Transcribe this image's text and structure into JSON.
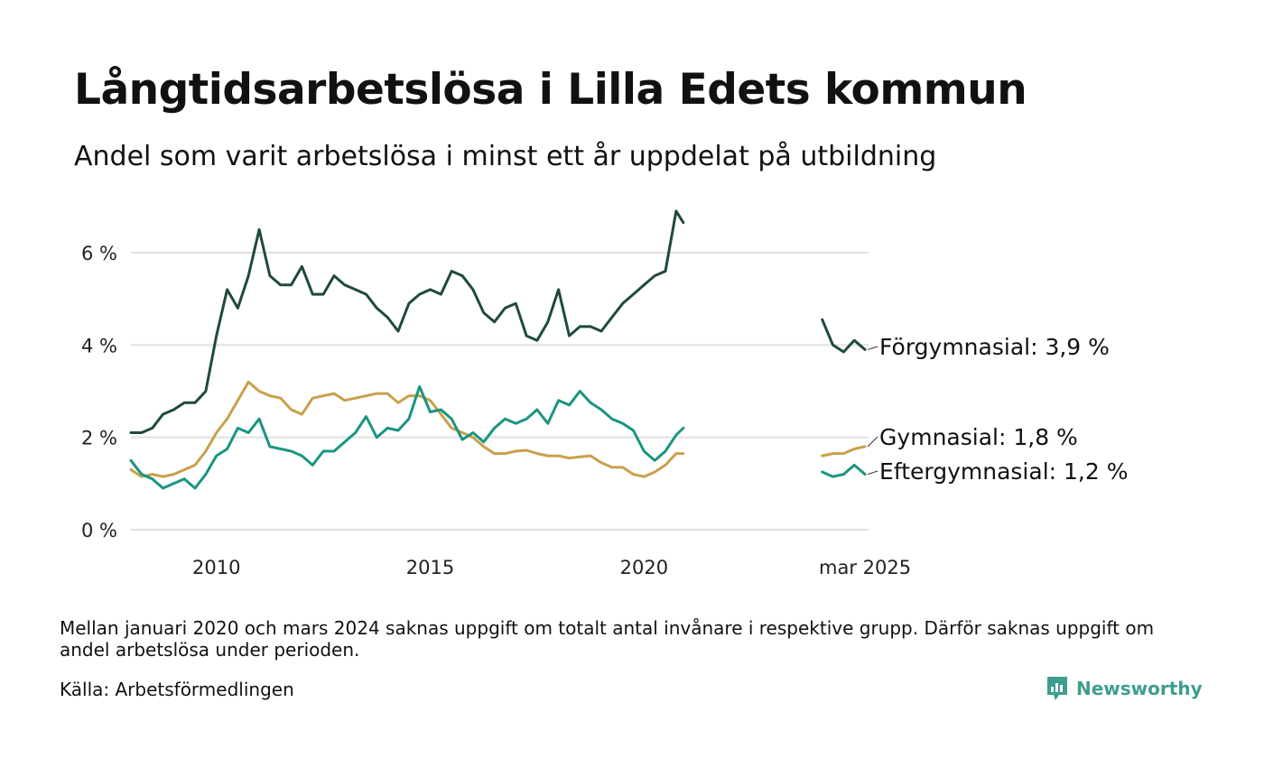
{
  "header": {
    "title": "Långtidsarbetslösa i Lilla Edets kommun",
    "subtitle": "Andel som varit arbetslösa i minst ett år uppdelat på utbildning"
  },
  "footer": {
    "note": "Mellan januari 2020 och mars 2024 saknas uppgift om totalt antal invånare i respektive grupp. Därför saknas uppgift om andel arbetslösa under perioden.",
    "source": "Källa: Arbetsförmedlingen",
    "brand": "Newsworthy"
  },
  "colors": {
    "forgymnasial": "#1f4a3c",
    "gymnasial": "#c9a04c",
    "eftergymnasial": "#1a9580",
    "grid": "#e0e0e0",
    "brand": "#3d9e8e"
  },
  "chart_data": {
    "type": "line",
    "title": "Långtidsarbetslösa i Lilla Edets kommun",
    "subtitle": "Andel som varit arbetslösa i minst ett år uppdelat på utbildning",
    "xlabel": "",
    "ylabel": "",
    "ylim": [
      0,
      7
    ],
    "grid": true,
    "y_ticks": [
      {
        "value": 0,
        "label": "0 %"
      },
      {
        "value": 2,
        "label": "2 %"
      },
      {
        "value": 4,
        "label": "4 %"
      },
      {
        "value": 6,
        "label": "6 %"
      }
    ],
    "x_ticks": [
      {
        "value": "2010",
        "label": "2010"
      },
      {
        "value": "2015",
        "label": "2015"
      },
      {
        "value": "2020",
        "label": "2020"
      },
      {
        "value": "2025-03",
        "label": "mar 2025"
      }
    ],
    "series": [
      {
        "name": "Förgymnasial",
        "end_label": "Förgymnasial: 3,9 %",
        "color": "#1f4a3c",
        "segments": [
          [
            [
              "2008-01",
              2.1
            ],
            [
              "2008-04",
              2.1
            ],
            [
              "2008-07",
              2.2
            ],
            [
              "2008-10",
              2.5
            ],
            [
              "2009-01",
              2.6
            ],
            [
              "2009-04",
              2.75
            ],
            [
              "2009-07",
              2.75
            ],
            [
              "2009-10",
              3.0
            ],
            [
              "2010-01",
              4.2
            ],
            [
              "2010-04",
              5.2
            ],
            [
              "2010-07",
              4.8
            ],
            [
              "2010-10",
              5.5
            ],
            [
              "2011-01",
              6.5
            ],
            [
              "2011-04",
              5.5
            ],
            [
              "2011-07",
              5.3
            ],
            [
              "2011-10",
              5.3
            ],
            [
              "2012-01",
              5.7
            ],
            [
              "2012-04",
              5.1
            ],
            [
              "2012-07",
              5.1
            ],
            [
              "2012-10",
              5.5
            ],
            [
              "2013-01",
              5.3
            ],
            [
              "2013-04",
              5.2
            ],
            [
              "2013-07",
              5.1
            ],
            [
              "2013-10",
              4.8
            ],
            [
              "2014-01",
              4.6
            ],
            [
              "2014-04",
              4.3
            ],
            [
              "2014-07",
              4.9
            ],
            [
              "2014-10",
              5.1
            ],
            [
              "2015-01",
              5.2
            ],
            [
              "2015-04",
              5.1
            ],
            [
              "2015-07",
              5.6
            ],
            [
              "2015-10",
              5.5
            ],
            [
              "2016-01",
              5.2
            ],
            [
              "2016-04",
              4.7
            ],
            [
              "2016-07",
              4.5
            ],
            [
              "2016-10",
              4.8
            ],
            [
              "2017-01",
              4.9
            ],
            [
              "2017-04",
              4.2
            ],
            [
              "2017-07",
              4.1
            ],
            [
              "2017-10",
              4.5
            ],
            [
              "2018-01",
              5.2
            ],
            [
              "2018-04",
              4.2
            ],
            [
              "2018-07",
              4.4
            ],
            [
              "2018-10",
              4.4
            ],
            [
              "2019-01",
              4.3
            ],
            [
              "2019-04",
              4.6
            ],
            [
              "2019-07",
              4.9
            ],
            [
              "2019-10",
              5.1
            ],
            [
              "2020-01",
              5.3
            ],
            [
              "2020-04",
              5.5
            ],
            [
              "2020-07",
              5.6
            ],
            [
              "2020-10",
              6.9
            ],
            [
              "2020-12",
              6.65
            ]
          ],
          [
            [
              "2024-03",
              4.55
            ],
            [
              "2024-06",
              4.0
            ],
            [
              "2024-09",
              3.85
            ],
            [
              "2024-12",
              4.1
            ],
            [
              "2025-03",
              3.9
            ]
          ]
        ]
      },
      {
        "name": "Gymnasial",
        "end_label": "Gymnasial: 1,8 %",
        "color": "#c9a04c",
        "segments": [
          [
            [
              "2008-01",
              1.3
            ],
            [
              "2008-04",
              1.15
            ],
            [
              "2008-07",
              1.2
            ],
            [
              "2008-10",
              1.15
            ],
            [
              "2009-01",
              1.2
            ],
            [
              "2009-04",
              1.3
            ],
            [
              "2009-07",
              1.4
            ],
            [
              "2009-10",
              1.7
            ],
            [
              "2010-01",
              2.1
            ],
            [
              "2010-04",
              2.4
            ],
            [
              "2010-07",
              2.8
            ],
            [
              "2010-10",
              3.2
            ],
            [
              "2011-01",
              3.0
            ],
            [
              "2011-04",
              2.9
            ],
            [
              "2011-07",
              2.85
            ],
            [
              "2011-10",
              2.6
            ],
            [
              "2012-01",
              2.5
            ],
            [
              "2012-04",
              2.85
            ],
            [
              "2012-07",
              2.9
            ],
            [
              "2012-10",
              2.95
            ],
            [
              "2013-01",
              2.8
            ],
            [
              "2013-04",
              2.85
            ],
            [
              "2013-07",
              2.9
            ],
            [
              "2013-10",
              2.95
            ],
            [
              "2014-01",
              2.95
            ],
            [
              "2014-04",
              2.75
            ],
            [
              "2014-07",
              2.9
            ],
            [
              "2014-10",
              2.9
            ],
            [
              "2015-01",
              2.8
            ],
            [
              "2015-04",
              2.5
            ],
            [
              "2015-07",
              2.2
            ],
            [
              "2015-10",
              2.1
            ],
            [
              "2016-01",
              2.0
            ],
            [
              "2016-04",
              1.8
            ],
            [
              "2016-07",
              1.65
            ],
            [
              "2016-10",
              1.65
            ],
            [
              "2017-01",
              1.7
            ],
            [
              "2017-04",
              1.72
            ],
            [
              "2017-07",
              1.65
            ],
            [
              "2017-10",
              1.6
            ],
            [
              "2018-01",
              1.6
            ],
            [
              "2018-04",
              1.55
            ],
            [
              "2018-07",
              1.58
            ],
            [
              "2018-10",
              1.6
            ],
            [
              "2019-01",
              1.45
            ],
            [
              "2019-04",
              1.35
            ],
            [
              "2019-07",
              1.35
            ],
            [
              "2019-10",
              1.2
            ],
            [
              "2020-01",
              1.15
            ],
            [
              "2020-04",
              1.25
            ],
            [
              "2020-07",
              1.4
            ],
            [
              "2020-10",
              1.65
            ],
            [
              "2020-12",
              1.65
            ]
          ],
          [
            [
              "2024-03",
              1.6
            ],
            [
              "2024-06",
              1.65
            ],
            [
              "2024-09",
              1.65
            ],
            [
              "2024-12",
              1.75
            ],
            [
              "2025-03",
              1.8
            ]
          ]
        ]
      },
      {
        "name": "Eftergymnasial",
        "end_label": "Eftergymnasial: 1,2 %",
        "color": "#1a9580",
        "segments": [
          [
            [
              "2008-01",
              1.5
            ],
            [
              "2008-04",
              1.2
            ],
            [
              "2008-07",
              1.1
            ],
            [
              "2008-10",
              0.9
            ],
            [
              "2009-01",
              1.0
            ],
            [
              "2009-04",
              1.1
            ],
            [
              "2009-07",
              0.9
            ],
            [
              "2009-10",
              1.2
            ],
            [
              "2010-01",
              1.6
            ],
            [
              "2010-04",
              1.75
            ],
            [
              "2010-07",
              2.2
            ],
            [
              "2010-10",
              2.1
            ],
            [
              "2011-01",
              2.4
            ],
            [
              "2011-04",
              1.8
            ],
            [
              "2011-07",
              1.75
            ],
            [
              "2011-10",
              1.7
            ],
            [
              "2012-01",
              1.6
            ],
            [
              "2012-04",
              1.4
            ],
            [
              "2012-07",
              1.7
            ],
            [
              "2012-10",
              1.7
            ],
            [
              "2013-01",
              1.9
            ],
            [
              "2013-04",
              2.1
            ],
            [
              "2013-07",
              2.45
            ],
            [
              "2013-10",
              2.0
            ],
            [
              "2014-01",
              2.2
            ],
            [
              "2014-04",
              2.15
            ],
            [
              "2014-07",
              2.4
            ],
            [
              "2014-10",
              3.1
            ],
            [
              "2015-01",
              2.55
            ],
            [
              "2015-04",
              2.6
            ],
            [
              "2015-07",
              2.4
            ],
            [
              "2015-10",
              1.95
            ],
            [
              "2016-01",
              2.1
            ],
            [
              "2016-04",
              1.9
            ],
            [
              "2016-07",
              2.2
            ],
            [
              "2016-10",
              2.4
            ],
            [
              "2017-01",
              2.3
            ],
            [
              "2017-04",
              2.4
            ],
            [
              "2017-07",
              2.6
            ],
            [
              "2017-10",
              2.3
            ],
            [
              "2018-01",
              2.8
            ],
            [
              "2018-04",
              2.7
            ],
            [
              "2018-07",
              3.0
            ],
            [
              "2018-10",
              2.75
            ],
            [
              "2019-01",
              2.6
            ],
            [
              "2019-04",
              2.4
            ],
            [
              "2019-07",
              2.3
            ],
            [
              "2019-10",
              2.15
            ],
            [
              "2020-01",
              1.7
            ],
            [
              "2020-04",
              1.5
            ],
            [
              "2020-07",
              1.7
            ],
            [
              "2020-10",
              2.05
            ],
            [
              "2020-12",
              2.2
            ]
          ],
          [
            [
              "2024-03",
              1.25
            ],
            [
              "2024-06",
              1.15
            ],
            [
              "2024-09",
              1.2
            ],
            [
              "2024-12",
              1.4
            ],
            [
              "2025-03",
              1.2
            ]
          ]
        ]
      }
    ]
  }
}
